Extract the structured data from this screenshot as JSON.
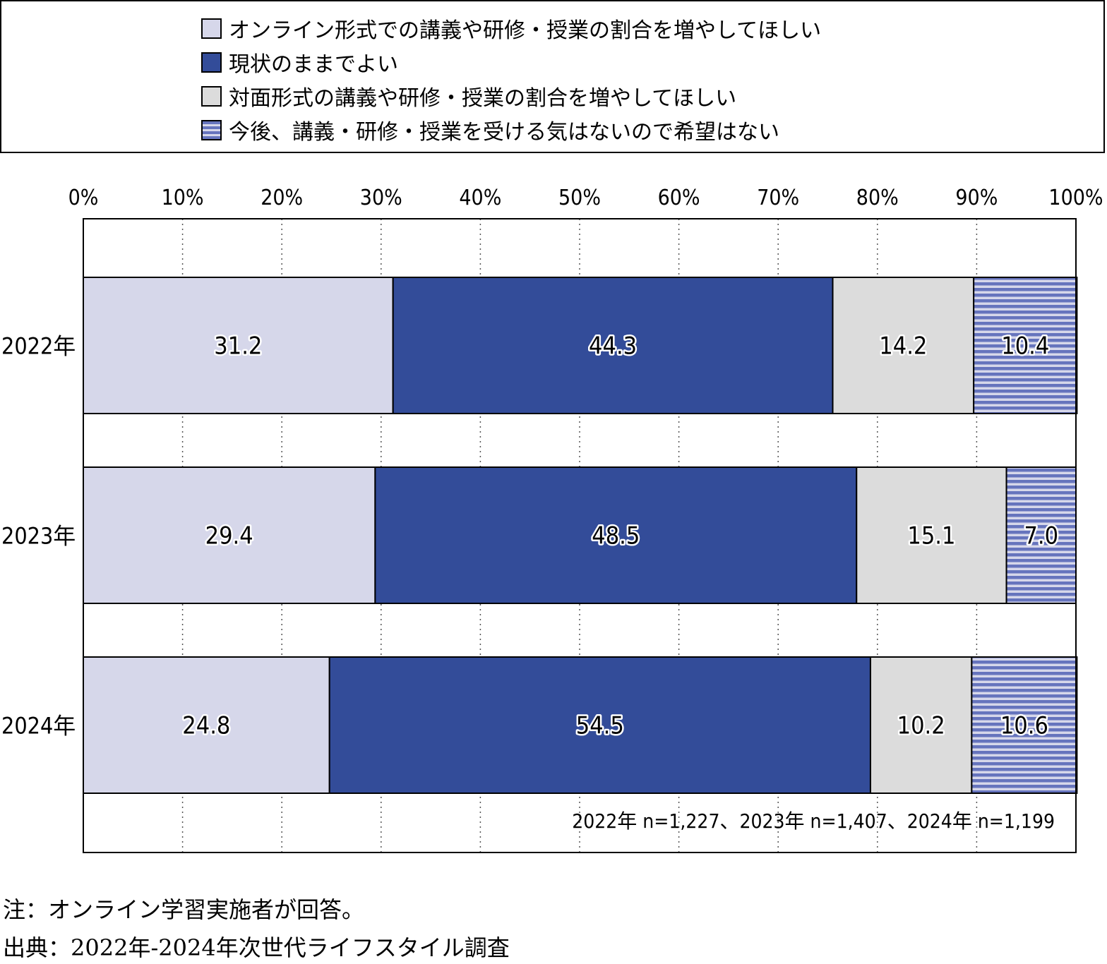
{
  "chart_data": {
    "type": "bar",
    "orientation": "horizontal",
    "stacked": true,
    "categories": [
      "2022年",
      "2023年",
      "2024年"
    ],
    "series": [
      {
        "name": "オンライン形式での講義や研修・授業の割合を増やしてほしい",
        "values": [
          31.2,
          29.4,
          24.8
        ],
        "color": "#d6d7ea",
        "pattern": "solid"
      },
      {
        "name": "現状のままでよい",
        "values": [
          44.3,
          48.5,
          54.5
        ],
        "color": "#334c99",
        "pattern": "solid"
      },
      {
        "name": "対面形式の講義や研修・授業の割合を増やしてほしい",
        "values": [
          14.2,
          15.1,
          10.2
        ],
        "color": "#dcdcdc",
        "pattern": "solid"
      },
      {
        "name": "今後、講義・研修・授業を受ける気はないので希望はない",
        "values": [
          10.4,
          7.0,
          10.6
        ],
        "color": "#6674bd",
        "pattern": "horizontal-stripes"
      }
    ],
    "value_labels": [
      [
        "31.2",
        "44.3",
        "14.2",
        "10.4"
      ],
      [
        "29.4",
        "48.5",
        "15.1",
        "7.0"
      ],
      [
        "24.8",
        "54.5",
        "10.2",
        "10.6"
      ]
    ],
    "xlim": [
      0,
      100
    ],
    "x_ticks": [
      "0%",
      "10%",
      "20%",
      "30%",
      "40%",
      "50%",
      "60%",
      "70%",
      "80%",
      "90%",
      "100%"
    ],
    "grid": "vertical-dotted",
    "legend_position": "top",
    "sample_note": "2022年 n=1,227、2023年 n=1,407、2024年 n=1,199"
  },
  "footer": {
    "note": "注：オンライン学習実施者が回答。",
    "source": "出典：2022年-2024年次世代ライフスタイル調査"
  }
}
